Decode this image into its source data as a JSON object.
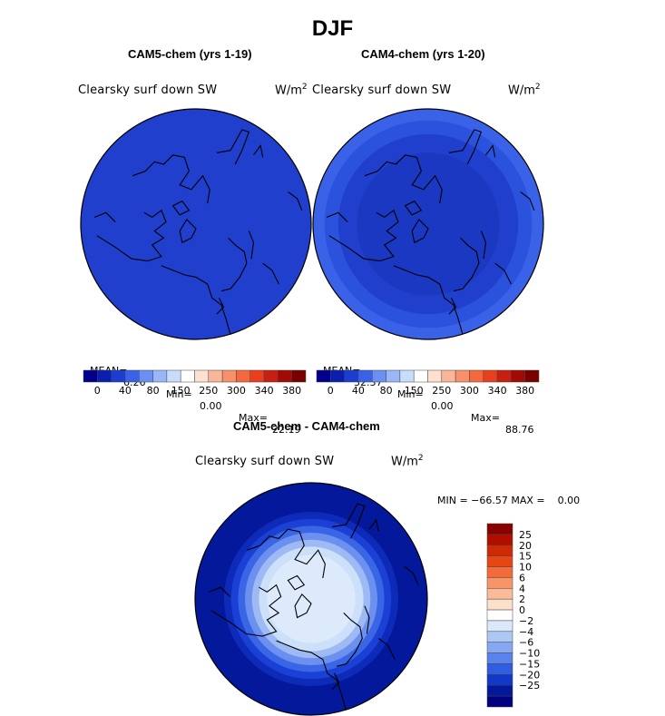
{
  "figure": {
    "title": "DJF",
    "panels": [
      {
        "subtitle": "CAM5-chem (yrs 1-19)",
        "variable": "Clearsky surf down SW",
        "units_base": "W/m",
        "units_exp": "2",
        "stats": {
          "mean_label": "MEAN=",
          "mean": "6.26",
          "min_label": "Min=",
          "min": "0.00",
          "max_label": "Max=",
          "max": "22.19"
        }
      },
      {
        "subtitle": "CAM4-chem (yrs 1-20)",
        "variable": "Clearsky surf down SW",
        "units_base": "W/m",
        "units_exp": "2",
        "stats": {
          "mean_label": "MEAN=",
          "mean": "32.37",
          "min_label": "Min=",
          "min": "0.00",
          "max_label": "Max=",
          "max": "88.76"
        }
      },
      {
        "subtitle": "CAM5-chem - CAM4-chem",
        "variable": "Clearsky surf down SW",
        "units_base": "W/m",
        "units_exp": "2",
        "stats_text": "MIN = −66.57 MAX =    0.00"
      }
    ]
  },
  "chart_data": [
    {
      "type": "heatmap",
      "projection": "north polar stereographic",
      "title": "CAM5-chem (yrs 1-19)",
      "variable": "Clearsky surf down SW",
      "units": "W/m2",
      "mean": 6.26,
      "min": 0.0,
      "max": 22.19,
      "colorbar_levels": [
        0,
        40,
        80,
        150,
        250,
        300,
        340,
        380
      ],
      "colorbar_tick_labels": [
        "0",
        "40",
        "80",
        "150",
        "250",
        "300",
        "340",
        "380"
      ],
      "colorbar_colors": [
        "#00008a",
        "#0a1fb0",
        "#1a3ed0",
        "#3a62e8",
        "#6a90f4",
        "#9ab6f8",
        "#c8dcfb",
        "#ffffff",
        "#fde0d0",
        "#fbb598",
        "#f8906a",
        "#f4683e",
        "#e8401c",
        "#c82010",
        "#a20a06",
        "#7a0000"
      ],
      "rings": [
        {
          "r_fraction": 1.0,
          "color": "#1f3fcc"
        }
      ]
    },
    {
      "type": "heatmap",
      "projection": "north polar stereographic",
      "title": "CAM4-chem (yrs 1-20)",
      "variable": "Clearsky surf down SW",
      "units": "W/m2",
      "mean": 32.37,
      "min": 0.0,
      "max": 88.76,
      "colorbar_levels": [
        0,
        40,
        80,
        150,
        250,
        300,
        340,
        380
      ],
      "colorbar_tick_labels": [
        "0",
        "40",
        "80",
        "150",
        "250",
        "300",
        "340",
        "380"
      ],
      "colorbar_colors": [
        "#00008a",
        "#0a1fb0",
        "#1a3ed0",
        "#3a62e8",
        "#6a90f4",
        "#9ab6f8",
        "#c8dcfb",
        "#ffffff",
        "#fde0d0",
        "#fbb598",
        "#f8906a",
        "#f4683e",
        "#e8401c",
        "#c82010",
        "#a20a06",
        "#7a0000"
      ],
      "rings": [
        {
          "r_fraction": 1.0,
          "color": "#3a62e8"
        },
        {
          "r_fraction": 0.9,
          "color": "#2a52dd"
        },
        {
          "r_fraction": 0.78,
          "color": "#1f3fcc"
        },
        {
          "r_fraction": 0.62,
          "color": "#1a38c2"
        }
      ]
    },
    {
      "type": "heatmap",
      "projection": "north polar stereographic",
      "title": "CAM5-chem - CAM4-chem",
      "variable": "Clearsky surf down SW",
      "units": "W/m2",
      "min": -66.57,
      "max": 0.0,
      "colorbar_tick_labels": [
        "25",
        "20",
        "15",
        "10",
        "6",
        "4",
        "2",
        "0",
        "−2",
        "−4",
        "−6",
        "−10",
        "−15",
        "−20",
        "−25"
      ],
      "colorbar_colors": [
        "#8a0000",
        "#b00f00",
        "#cf2a06",
        "#e84514",
        "#f56a3a",
        "#f99468",
        "#fbbb98",
        "#fde0cc",
        "#ffffff",
        "#dbe7fb",
        "#aec8f6",
        "#86a8f2",
        "#5b82ec",
        "#2f5ee0",
        "#1238c8",
        "#03189a",
        "#000080"
      ],
      "rings": [
        {
          "r_fraction": 1.0,
          "color": "#03189a"
        },
        {
          "r_fraction": 0.75,
          "color": "#0d2ab8"
        },
        {
          "r_fraction": 0.69,
          "color": "#1a40d6"
        },
        {
          "r_fraction": 0.63,
          "color": "#3a66e6"
        },
        {
          "r_fraction": 0.57,
          "color": "#6b90f0"
        },
        {
          "r_fraction": 0.51,
          "color": "#9dbaf5"
        },
        {
          "r_fraction": 0.45,
          "color": "#cde0fa"
        },
        {
          "r_fraction": 0.38,
          "color": "#ddeafc"
        }
      ]
    }
  ]
}
